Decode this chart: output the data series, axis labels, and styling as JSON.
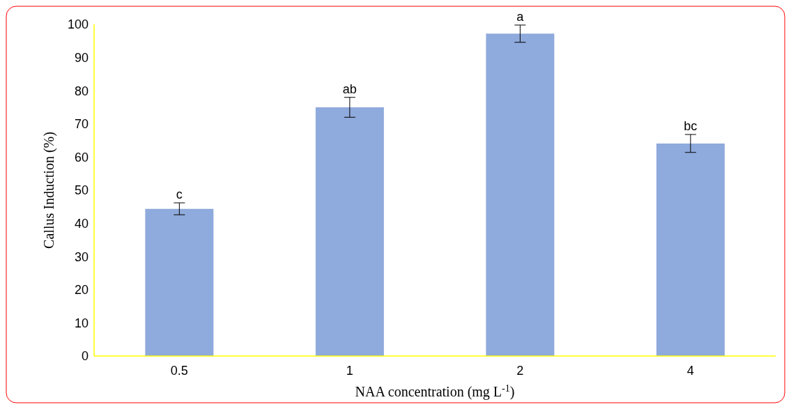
{
  "chart_data": {
    "type": "bar",
    "xlabel": "NAA concentration (mg L$^{-1}$)",
    "ylabel": "Callus Induction (%)",
    "categories": [
      "0.5",
      "1",
      "2",
      "4"
    ],
    "values": [
      44.4,
      75,
      97.2,
      64.1
    ],
    "errors": [
      1.8,
      3,
      2.6,
      2.7
    ],
    "color": "#8faadc",
    "ylim": [
      0,
      100
    ],
    "yticks": [
      0,
      10,
      20,
      30,
      40,
      50,
      60,
      70,
      80,
      90,
      100
    ],
    "annotations": [
      {
        "text": "c",
        "x": "0.5",
        "y": 46.2
      },
      {
        "text": "ab",
        "x": "1",
        "y": 78
      },
      {
        "text": "a",
        "x": "2",
        "y": 99.8
      },
      {
        "text": "bc",
        "x": "4",
        "y": 66.8
      }
    ]
  }
}
